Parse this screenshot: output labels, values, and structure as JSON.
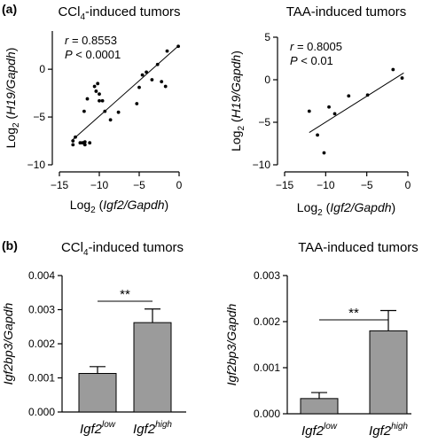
{
  "panel_labels": {
    "a": "(a)",
    "b": "(b)"
  },
  "chart_data": [
    {
      "type": "scatter",
      "title_main": "CCl",
      "title_sub": "4",
      "title_rest": "-induced tumors",
      "r_label": "r",
      "r_value": " = 0.8553",
      "p_label": "P",
      "p_value": " < 0.0001",
      "xlabel": {
        "pre": "Log",
        "sub": "2",
        "open": " (",
        "italic": "Igf2/Gapdh",
        "close": ")"
      },
      "ylabel": {
        "pre": "Log",
        "sub": "2",
        "open": " (",
        "italic": "H19/Gapdh",
        "close": ")"
      },
      "xlim": [
        -15,
        0
      ],
      "ylim": [
        -10,
        4
      ],
      "xticks": [
        -15,
        -10,
        -5,
        0
      ],
      "xtick_labels": [
        "−15",
        "−10",
        "−5",
        "0"
      ],
      "yticks": [
        -10,
        -5,
        0
      ],
      "ytick_labels": [
        "−10",
        "−5",
        "0"
      ],
      "fit_line": [
        [
          -13.5,
          -7.5
        ],
        [
          0,
          2.5
        ]
      ],
      "points": [
        [
          -13.3,
          -7.9
        ],
        [
          -13.3,
          -7.5
        ],
        [
          -13.0,
          -7.1
        ],
        [
          -12.4,
          -7.7
        ],
        [
          -12.1,
          -7.7
        ],
        [
          -11.8,
          -7.9
        ],
        [
          -11.8,
          -7.6
        ],
        [
          -11.9,
          -4.4
        ],
        [
          -11.5,
          -3.1
        ],
        [
          -11.2,
          -7.7
        ],
        [
          -10.6,
          -1.8
        ],
        [
          -10.4,
          -2.3
        ],
        [
          -10.2,
          -1.5
        ],
        [
          -10.0,
          -2.6
        ],
        [
          -10.0,
          -3.3
        ],
        [
          -9.6,
          -3.3
        ],
        [
          -9.3,
          -4.4
        ],
        [
          -8.6,
          -5.3
        ],
        [
          -7.6,
          -4.5
        ],
        [
          -5.3,
          -3.6
        ],
        [
          -5.0,
          -1.9
        ],
        [
          -4.6,
          -0.6
        ],
        [
          -4.1,
          -0.3
        ],
        [
          -3.4,
          -1.1
        ],
        [
          -2.7,
          0.5
        ],
        [
          -2.2,
          -1.3
        ],
        [
          -1.7,
          -1.8
        ],
        [
          -1.5,
          1.9
        ],
        [
          -0.1,
          2.4
        ]
      ]
    },
    {
      "type": "scatter",
      "title_main": "TAA-induced tumors",
      "r_label": "r",
      "r_value": " = 0.8005",
      "p_label": "P",
      "p_value": " < 0.01",
      "xlabel": {
        "pre": "Log",
        "sub": "2",
        "open": " (",
        "italic": "Igf2/Gapdh",
        "close": ")"
      },
      "ylabel": {
        "pre": "Log",
        "sub": "2",
        "open": " (",
        "italic": "H19/Gapdh",
        "close": ")"
      },
      "xlim": [
        -15,
        0
      ],
      "ylim": [
        -10,
        5
      ],
      "xticks": [
        -15,
        -10,
        -5,
        0
      ],
      "xtick_labels": [
        "−15",
        "−10",
        "−5",
        "0"
      ],
      "yticks": [
        -10,
        -5,
        0,
        5
      ],
      "ytick_labels": [
        "−10",
        "−5",
        "0",
        "5"
      ],
      "fit_line": [
        [
          -12,
          -6.2
        ],
        [
          -0.5,
          0.8
        ]
      ],
      "points": [
        [
          -12.0,
          -3.7
        ],
        [
          -11.0,
          -6.5
        ],
        [
          -10.2,
          -8.6
        ],
        [
          -9.6,
          -3.2
        ],
        [
          -8.9,
          -4.0
        ],
        [
          -7.2,
          -1.9
        ],
        [
          -4.9,
          -1.8
        ],
        [
          -1.8,
          1.2
        ],
        [
          -0.7,
          0.2
        ]
      ]
    },
    {
      "type": "bar",
      "title_main": "CCl",
      "title_sub": "4",
      "title_rest": "-induced tumors",
      "ylabel": "Igf2bp3/Gapdh",
      "categories": [
        {
          "base": "Igf2",
          "sup": "low"
        },
        {
          "base": "Igf2",
          "sup": "high"
        }
      ],
      "values": [
        0.00113,
        0.00262
      ],
      "errors": [
        0.0002,
        0.0004
      ],
      "ylim": [
        0,
        0.004
      ],
      "yticks": [
        0,
        0.001,
        0.002,
        0.003,
        0.004
      ],
      "ytick_labels": [
        "0.000",
        "0.001",
        "0.002",
        "0.003",
        "0.004"
      ],
      "significance": "**",
      "bar_color": "#9b9b9b"
    },
    {
      "type": "bar",
      "title_main": "TAA-induced tumors",
      "ylabel": "Igf2bp3/Gapdh",
      "categories": [
        {
          "base": "Igf2",
          "sup": "low"
        },
        {
          "base": "Igf2",
          "sup": "high"
        }
      ],
      "values": [
        0.00033,
        0.0018
      ],
      "errors": [
        0.00013,
        0.00044
      ],
      "ylim": [
        0,
        0.003
      ],
      "yticks": [
        0,
        0.001,
        0.002,
        0.003
      ],
      "ytick_labels": [
        "0.000",
        "0.001",
        "0.002",
        "0.003"
      ],
      "significance": "**",
      "bar_color": "#9b9b9b"
    }
  ]
}
